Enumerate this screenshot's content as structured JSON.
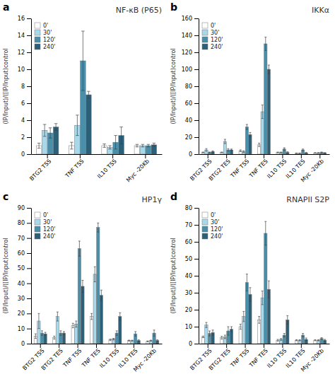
{
  "chart_data": [
    {
      "type": "bar",
      "title": "NF-κB (P65)",
      "annotations": [
        "a"
      ],
      "ylabel": "(IP/Input)/([IP/Input)control",
      "categories": [
        "BTG2 TSS",
        "TNF TSS",
        "IL10 TSS",
        "Myc -20Kb"
      ],
      "series": [
        {
          "name": "0'",
          "color": "#ffffff",
          "values": [
            1.0,
            1.0,
            1.0,
            1.0
          ],
          "errors": [
            0.3,
            0.4,
            0.2,
            0.15
          ]
        },
        {
          "name": "30'",
          "color": "#a8d8ea",
          "values": [
            2.8,
            3.4,
            0.8,
            1.0
          ],
          "errors": [
            0.7,
            1.2,
            0.2,
            0.15
          ]
        },
        {
          "name": "120'",
          "color": "#4a8faa",
          "values": [
            2.5,
            11.0,
            1.4,
            1.0
          ],
          "errors": [
            0.6,
            3.5,
            0.8,
            0.15
          ]
        },
        {
          "name": "240'",
          "color": "#2c5f78",
          "values": [
            3.2,
            7.0,
            2.2,
            1.1
          ],
          "errors": [
            0.4,
            0.4,
            1.0,
            0.2
          ]
        }
      ],
      "ylim": [
        0,
        16
      ],
      "yticks": [
        0,
        2,
        4,
        6,
        8,
        10,
        12,
        14,
        16
      ],
      "grid": false,
      "legend": "upper left"
    },
    {
      "type": "bar",
      "title": "IKKα",
      "annotations": [
        "b"
      ],
      "ylabel": "(IP/Input)/([IP/Input)control",
      "categories": [
        "BTG2 TSS",
        "BTG2 TES",
        "TNF TSS",
        "TNF TES",
        "IL10 TSS",
        "IL10 TES",
        "Myc -20Kb"
      ],
      "series": [
        {
          "name": "0'",
          "color": "#ffffff",
          "values": [
            2.0,
            2.0,
            4.0,
            11.0,
            2.0,
            1.0,
            1.5
          ],
          "errors": [
            0.5,
            0.5,
            1.0,
            2.0,
            0.5,
            0.3,
            0.3
          ]
        },
        {
          "name": "30'",
          "color": "#a8d8ea",
          "values": [
            5.0,
            15.0,
            3.0,
            50.0,
            2.0,
            1.0,
            1.5
          ],
          "errors": [
            1.5,
            2.5,
            1.0,
            8.0,
            0.5,
            0.3,
            0.3
          ]
        },
        {
          "name": "120'",
          "color": "#4a8faa",
          "values": [
            2.0,
            5.0,
            32.0,
            130.0,
            6.0,
            5.0,
            2.0
          ],
          "errors": [
            0.5,
            1.5,
            3.0,
            8.0,
            1.5,
            1.0,
            0.5
          ]
        },
        {
          "name": "240'",
          "color": "#2c5f78",
          "values": [
            3.0,
            5.0,
            23.0,
            100.0,
            2.0,
            1.5,
            1.5
          ],
          "errors": [
            0.8,
            1.0,
            2.5,
            5.0,
            0.8,
            0.5,
            0.3
          ]
        }
      ],
      "ylim": [
        0,
        160
      ],
      "yticks": [
        0,
        20,
        40,
        60,
        80,
        100,
        120,
        140,
        160
      ],
      "grid": false,
      "legend": "upper left"
    },
    {
      "type": "bar",
      "title": "HP1γ",
      "annotations": [
        "c"
      ],
      "ylabel": "(IP/Input)/([IP/Input)control",
      "categories": [
        "BTG2 TSS",
        "BTG2 TES",
        "TNF TSS",
        "TNF TES",
        "IL10 TSS",
        "IL10 TES",
        "Myc -20Kb"
      ],
      "series": [
        {
          "name": "0'",
          "color": "#ffffff",
          "values": [
            5.0,
            4.0,
            12.0,
            18.0,
            2.5,
            2.0,
            1.5
          ],
          "errors": [
            1.5,
            1.0,
            1.5,
            2.0,
            0.5,
            0.3,
            0.3
          ]
        },
        {
          "name": "30'",
          "color": "#a8d8ea",
          "values": [
            15.0,
            18.0,
            13.0,
            46.0,
            3.0,
            2.0,
            2.0
          ],
          "errors": [
            5.0,
            3.0,
            2.0,
            5.0,
            0.5,
            0.3,
            0.3
          ]
        },
        {
          "name": "120'",
          "color": "#4a8faa",
          "values": [
            7.0,
            7.0,
            63.0,
            77.0,
            7.0,
            6.5,
            7.0
          ],
          "errors": [
            1.5,
            1.5,
            5.0,
            3.0,
            1.5,
            1.5,
            2.0
          ]
        },
        {
          "name": "240'",
          "color": "#2c5f78",
          "values": [
            6.5,
            7.0,
            38.0,
            32.0,
            18.0,
            2.0,
            2.0
          ],
          "errors": [
            1.0,
            1.0,
            4.0,
            3.5,
            2.5,
            0.5,
            0.5
          ]
        }
      ],
      "ylim": [
        0,
        90
      ],
      "yticks": [
        0,
        10,
        20,
        30,
        40,
        50,
        60,
        70,
        80,
        90
      ],
      "grid": false,
      "legend": "upper left"
    },
    {
      "type": "bar",
      "title": "RNAPII S2P",
      "annotations": [
        "d"
      ],
      "ylabel": "(IP/Input)/([IP/Input)control",
      "categories": [
        "BTG2 TSS",
        "BTG2 TES",
        "TNF TSS",
        "TNF TES",
        "IL10 TSS",
        "IL10 TES",
        "Myc -20Kb"
      ],
      "series": [
        {
          "name": "0'",
          "color": "#ffffff",
          "values": [
            4.0,
            3.5,
            10.0,
            14.0,
            2.0,
            2.0,
            2.0
          ],
          "errors": [
            0.5,
            0.8,
            1.5,
            2.0,
            0.5,
            0.3,
            0.3
          ]
        },
        {
          "name": "30'",
          "color": "#a8d8ea",
          "values": [
            11.0,
            4.0,
            16.0,
            27.0,
            2.5,
            2.0,
            2.0
          ],
          "errors": [
            1.5,
            1.0,
            3.0,
            4.0,
            0.5,
            0.3,
            0.3
          ]
        },
        {
          "name": "120'",
          "color": "#4a8faa",
          "values": [
            6.0,
            7.5,
            36.0,
            65.0,
            5.0,
            5.0,
            3.0
          ],
          "errors": [
            1.5,
            2.5,
            5.0,
            7.0,
            1.0,
            1.0,
            0.5
          ]
        },
        {
          "name": "240'",
          "color": "#2c5f78",
          "values": [
            6.5,
            8.5,
            29.0,
            32.0,
            14.0,
            2.5,
            2.0
          ],
          "errors": [
            1.5,
            1.5,
            4.0,
            5.0,
            2.5,
            0.8,
            0.5
          ]
        }
      ],
      "ylim": [
        0,
        80
      ],
      "yticks": [
        0,
        10,
        20,
        30,
        40,
        50,
        60,
        70,
        80
      ],
      "grid": false,
      "legend": "upper left"
    }
  ]
}
